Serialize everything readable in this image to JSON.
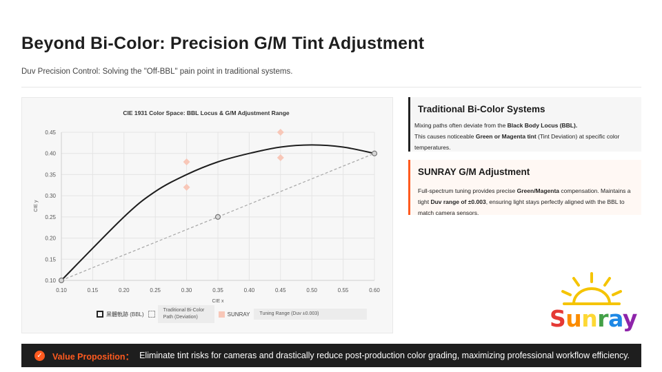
{
  "header": {
    "title": "Beyond Bi-Color: Precision G/M Tint Adjustment",
    "subtitle": "Duv Precision Control: Solving the \"Off-BBL\" pain point in traditional systems."
  },
  "chart_data": {
    "type": "scatter",
    "title": "CIE 1931 Color Space: BBL Locus & G/M Adjustment Range",
    "xlabel": "CIE x",
    "ylabel": "CIE y",
    "xlim": [
      0.1,
      0.6
    ],
    "ylim": [
      0.1,
      0.45
    ],
    "xticks": [
      "0.10",
      "0.15",
      "0.20",
      "0.25",
      "0.30",
      "0.35",
      "0.40",
      "0.45",
      "0.50",
      "0.55",
      "0.60"
    ],
    "yticks": [
      "0.10",
      "0.15",
      "0.20",
      "0.25",
      "0.30",
      "0.35",
      "0.40",
      "0.45"
    ],
    "grid": true,
    "series": [
      {
        "name": "黑體軌跡 (BBL)",
        "kind": "line",
        "x": [
          0.1,
          0.2,
          0.25,
          0.3,
          0.35,
          0.4,
          0.45,
          0.5,
          0.55,
          0.6
        ],
        "y": [
          0.1,
          0.25,
          0.31,
          0.35,
          0.38,
          0.4,
          0.415,
          0.42,
          0.415,
          0.4
        ]
      },
      {
        "name": "Traditional Bi-Color Path (Deviation)",
        "kind": "dashed",
        "x": [
          0.1,
          0.35,
          0.6
        ],
        "y": [
          0.1,
          0.25,
          0.4
        ]
      },
      {
        "name": "SUNRAY",
        "kind": "points",
        "x": [
          0.3,
          0.3,
          0.45,
          0.45
        ],
        "y": [
          0.38,
          0.32,
          0.45,
          0.39
        ]
      }
    ],
    "legend": [
      {
        "label": "黑體軌跡 (BBL)"
      },
      {
        "label": "Traditional Bi-Color Path (Deviation)"
      },
      {
        "label": "SUNRAY"
      },
      {
        "label": "Tuning Range (Duv ±0.003)"
      }
    ]
  },
  "panels": {
    "traditional": {
      "title": "Traditional Bi-Color Systems",
      "t1": "Mixing paths often deviate from the ",
      "b1": "Black Body Locus (BBL).",
      "t2": "This causes noticeable ",
      "b2": "Green or Magenta tint",
      "t3": " (Tint Deviation) at specific color temperatures."
    },
    "sunray": {
      "title": "SUNRAY G/M Adjustment",
      "t1": "Full-spectrum tuning provides precise ",
      "b1": "Green/Magenta",
      "t2": " compensation. Maintains a tight ",
      "b2": "Duv range of ±0.003",
      "t3": ", ensuring light stays perfectly aligned with the BBL to match camera sensors."
    }
  },
  "logo": {
    "name": "Sunray",
    "colors": {
      "sun": "#f5c400",
      "S": "#e53935",
      "u": "#fb8c00",
      "n": "#fdd835",
      "r": "#43a047",
      "a": "#1e88e5",
      "y": "#8e24aa"
    }
  },
  "footer": {
    "label": "Value Proposition：",
    "text": "Eliminate tint risks for cameras and drastically reduce post-production color grading, maximizing professional workflow efficiency."
  },
  "colors": {
    "accent": "#ff5a1f",
    "dark": "#1e1e1e",
    "diamond": "#f8c7b8"
  }
}
